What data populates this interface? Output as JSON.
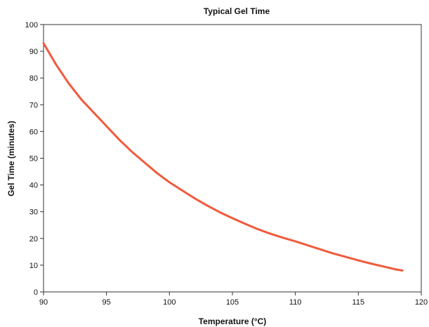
{
  "chart_data": {
    "type": "line",
    "title": "Typical Gel Time",
    "xlabel": "Temperature (°C)",
    "ylabel": "Gel Time (minutes)",
    "xlim": [
      90,
      120
    ],
    "ylim": [
      0,
      100
    ],
    "xticks": [
      90,
      95,
      100,
      105,
      110,
      115,
      120
    ],
    "yticks": [
      0,
      10,
      20,
      30,
      40,
      50,
      60,
      70,
      80,
      90,
      100
    ],
    "grid": false,
    "series": [
      {
        "color": "#f05a3c",
        "x": [
          90,
          91,
          92,
          93,
          94,
          95,
          96,
          97,
          98,
          99,
          100,
          101,
          102,
          103,
          104,
          105,
          106,
          107,
          108,
          109,
          110,
          111,
          112,
          113,
          114,
          115,
          116,
          117,
          118,
          118.5
        ],
        "y": [
          93,
          85,
          78,
          72,
          67,
          62,
          57,
          52.5,
          48.5,
          44.5,
          41,
          38,
          35,
          32.3,
          29.8,
          27.6,
          25.5,
          23.5,
          21.8,
          20.3,
          18.9,
          17.4,
          15.9,
          14.4,
          13.1,
          11.8,
          10.6,
          9.5,
          8.4,
          8
        ]
      }
    ]
  }
}
